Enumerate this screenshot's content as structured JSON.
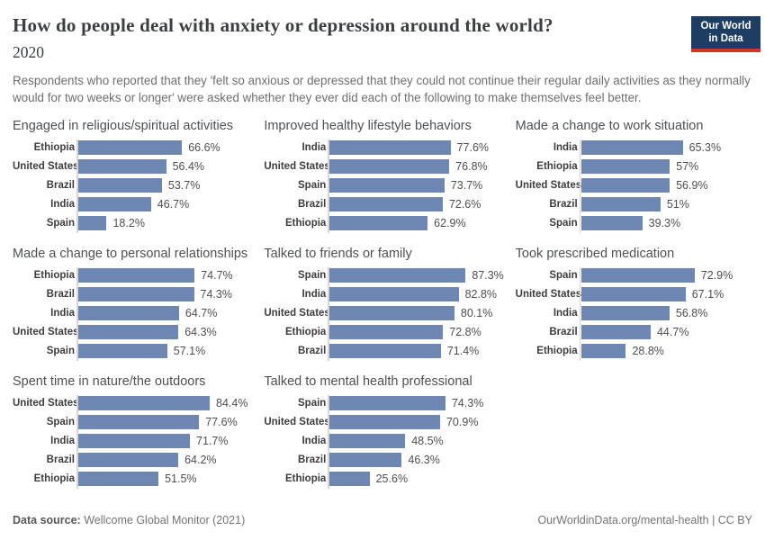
{
  "header": {
    "title": "How do people deal with anxiety or depression around the world?",
    "year": "2020",
    "subtitle": "Respondents who reported that they 'felt so anxious or depressed that they could not continue their regular daily activities as they normally would for two weeks or longer' were asked whether they ever did each of the following to make themselves feel better.",
    "logo": {
      "line1": "Our World",
      "line2": "in Data"
    }
  },
  "colors": {
    "bar": "#6e87b2",
    "logo_bg": "#1d3d63",
    "logo_accent": "#d0342c",
    "axis_line": "#d6d6d6"
  },
  "chart_data": [
    {
      "type": "bar",
      "title": "Engaged in religious/spiritual activities",
      "categories": [
        "Ethiopia",
        "United States",
        "Brazil",
        "India",
        "Spain"
      ],
      "values": [
        66.6,
        56.4,
        53.7,
        46.7,
        18.2
      ],
      "value_labels": [
        "66.6%",
        "56.4%",
        "53.7%",
        "46.7%",
        "18.2%"
      ],
      "xlim": [
        0,
        100
      ],
      "orientation": "horizontal",
      "grid": false,
      "legend": "none"
    },
    {
      "type": "bar",
      "title": "Improved healthy lifestyle behaviors",
      "categories": [
        "India",
        "United States",
        "Spain",
        "Brazil",
        "Ethiopia"
      ],
      "values": [
        77.6,
        76.8,
        73.7,
        72.6,
        62.9
      ],
      "value_labels": [
        "77.6%",
        "76.8%",
        "73.7%",
        "72.6%",
        "62.9%"
      ],
      "xlim": [
        0,
        100
      ],
      "orientation": "horizontal",
      "grid": false,
      "legend": "none"
    },
    {
      "type": "bar",
      "title": "Made a change to work situation",
      "categories": [
        "India",
        "Ethiopia",
        "United States",
        "Brazil",
        "Spain"
      ],
      "values": [
        65.3,
        57,
        56.9,
        51,
        39.3
      ],
      "value_labels": [
        "65.3%",
        "57%",
        "56.9%",
        "51%",
        "39.3%"
      ],
      "xlim": [
        0,
        100
      ],
      "orientation": "horizontal",
      "grid": false,
      "legend": "none"
    },
    {
      "type": "bar",
      "title": "Made a change to personal relationships",
      "categories": [
        "Ethiopia",
        "Brazil",
        "India",
        "United States",
        "Spain"
      ],
      "values": [
        74.7,
        74.3,
        64.7,
        64.3,
        57.1
      ],
      "value_labels": [
        "74.7%",
        "74.3%",
        "64.7%",
        "64.3%",
        "57.1%"
      ],
      "xlim": [
        0,
        100
      ],
      "orientation": "horizontal",
      "grid": false,
      "legend": "none"
    },
    {
      "type": "bar",
      "title": "Talked to friends or family",
      "categories": [
        "Spain",
        "India",
        "United States",
        "Ethiopia",
        "Brazil"
      ],
      "values": [
        87.3,
        82.8,
        80.1,
        72.8,
        71.4
      ],
      "value_labels": [
        "87.3%",
        "82.8%",
        "80.1%",
        "72.8%",
        "71.4%"
      ],
      "xlim": [
        0,
        100
      ],
      "orientation": "horizontal",
      "grid": false,
      "legend": "none"
    },
    {
      "type": "bar",
      "title": "Took prescribed medication",
      "categories": [
        "Spain",
        "United States",
        "India",
        "Brazil",
        "Ethiopia"
      ],
      "values": [
        72.9,
        67.1,
        56.8,
        44.7,
        28.8
      ],
      "value_labels": [
        "72.9%",
        "67.1%",
        "56.8%",
        "44.7%",
        "28.8%"
      ],
      "xlim": [
        0,
        100
      ],
      "orientation": "horizontal",
      "grid": false,
      "legend": "none"
    },
    {
      "type": "bar",
      "title": "Spent time in nature/the outdoors",
      "categories": [
        "United States",
        "Spain",
        "India",
        "Brazil",
        "Ethiopia"
      ],
      "values": [
        84.4,
        77.6,
        71.7,
        64.2,
        51.5
      ],
      "value_labels": [
        "84.4%",
        "77.6%",
        "71.7%",
        "64.2%",
        "51.5%"
      ],
      "xlim": [
        0,
        100
      ],
      "orientation": "horizontal",
      "grid": false,
      "legend": "none"
    },
    {
      "type": "bar",
      "title": "Talked to mental health professional",
      "categories": [
        "Spain",
        "United States",
        "India",
        "Brazil",
        "Ethiopia"
      ],
      "values": [
        74.3,
        70.9,
        48.5,
        46.3,
        25.6
      ],
      "value_labels": [
        "74.3%",
        "70.9%",
        "48.5%",
        "46.3%",
        "25.6%"
      ],
      "xlim": [
        0,
        100
      ],
      "orientation": "horizontal",
      "grid": false,
      "legend": "none"
    }
  ],
  "footer": {
    "source_label": "Data source:",
    "source_value": "Wellcome Global Monitor (2021)",
    "credit": "OurWorldinData.org/mental-health | CC BY"
  }
}
